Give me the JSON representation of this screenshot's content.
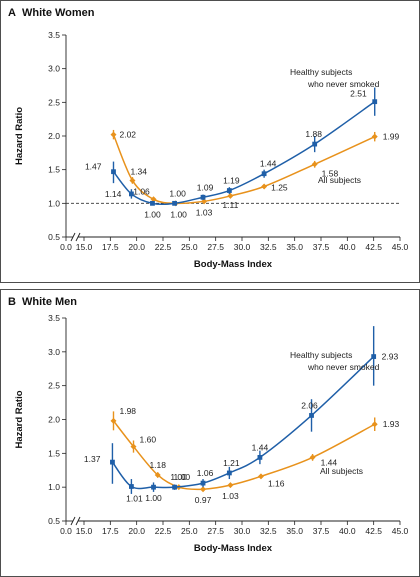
{
  "chart_data": [
    {
      "type": "line",
      "panel_letter": "A",
      "title": "White Women",
      "xlabel": "Body-Mass Index",
      "ylabel": "Hazard Ratio",
      "xlim": [
        0,
        45
      ],
      "ylim": [
        0.5,
        3.5
      ],
      "x_ticks": [
        0.0,
        15.0,
        17.5,
        20.0,
        22.5,
        25.0,
        27.5,
        30.0,
        32.5,
        35.0,
        37.5,
        40.0,
        42.5,
        45.0
      ],
      "x_tick_labels": [
        "0.0",
        "15.0",
        "17.5",
        "20.0",
        "22.5",
        "25.0",
        "27.5",
        "30.0",
        "32.5",
        "35.0",
        "37.5",
        "40.0",
        "42.5",
        "45.0"
      ],
      "y_ticks": [
        0.5,
        1.0,
        1.5,
        2.0,
        2.5,
        3.0,
        3.5
      ],
      "y_tick_labels": [
        "0.5",
        "1.0",
        "1.5",
        "2.0",
        "2.5",
        "3.0",
        "3.5"
      ],
      "reference_line": 1.0,
      "series": [
        {
          "name": "Healthy subjects who never smoked",
          "color": "#1f5fa8",
          "x": [
            17.8,
            19.5,
            21.5,
            23.6,
            26.3,
            28.8,
            32.1,
            36.9,
            42.6
          ],
          "y": [
            1.47,
            1.14,
            1.0,
            1.0,
            1.09,
            1.19,
            1.44,
            1.88,
            2.51
          ],
          "ci_low": [
            1.3,
            1.07,
            0.97,
            0.98,
            1.05,
            1.14,
            1.38,
            1.76,
            2.3
          ],
          "ci_high": [
            1.62,
            1.21,
            1.03,
            1.02,
            1.13,
            1.24,
            1.5,
            2.0,
            2.72
          ],
          "labels": [
            "1.47",
            "1.14",
            "1.00",
            "1.00",
            "1.09",
            "1.19",
            "1.44",
            "1.88",
            "2.51"
          ]
        },
        {
          "name": "All subjects",
          "color": "#e8921c",
          "x": [
            17.8,
            19.6,
            21.6,
            23.7,
            26.4,
            28.9,
            32.1,
            36.9,
            42.6
          ],
          "y": [
            2.02,
            1.34,
            1.06,
            1.0,
            1.03,
            1.11,
            1.25,
            1.58,
            1.99
          ],
          "ci_low": [
            1.95,
            1.29,
            1.04,
            0.99,
            1.02,
            1.09,
            1.23,
            1.53,
            1.92
          ],
          "ci_high": [
            2.09,
            1.39,
            1.08,
            1.01,
            1.04,
            1.13,
            1.27,
            1.63,
            2.06
          ],
          "labels": [
            "2.02",
            "1.34",
            "1.06",
            "1.00",
            "1.03",
            "1.11",
            "1.25",
            "1.58",
            "1.99"
          ]
        }
      ]
    },
    {
      "type": "line",
      "panel_letter": "B",
      "title": "White Men",
      "xlabel": "Body-Mass Index",
      "ylabel": "Hazard Ratio",
      "xlim": [
        0,
        45
      ],
      "ylim": [
        0.5,
        3.5
      ],
      "x_ticks": [
        0.0,
        15.0,
        17.5,
        20.0,
        22.5,
        25.0,
        27.5,
        30.0,
        32.5,
        35.0,
        37.5,
        40.0,
        42.5,
        45.0
      ],
      "x_tick_labels": [
        "0.0",
        "15.0",
        "17.5",
        "20.0",
        "22.5",
        "25.0",
        "27.5",
        "30.0",
        "32.5",
        "35.0",
        "37.5",
        "40.0",
        "42.5",
        "45.0"
      ],
      "y_ticks": [
        0.5,
        1.0,
        1.5,
        2.0,
        2.5,
        3.0,
        3.5
      ],
      "y_tick_labels": [
        "0.5",
        "1.0",
        "1.5",
        "2.0",
        "2.5",
        "3.0",
        "3.5"
      ],
      "reference_line": null,
      "series": [
        {
          "name": "Healthy subjects who never smoked",
          "color": "#1f5fa8",
          "x": [
            17.7,
            19.5,
            21.6,
            23.6,
            26.3,
            28.8,
            31.7,
            36.6,
            42.5
          ],
          "y": [
            1.37,
            1.01,
            1.0,
            1.0,
            1.06,
            1.21,
            1.44,
            2.06,
            2.93
          ],
          "ci_low": [
            1.05,
            0.9,
            0.93,
            0.96,
            1.0,
            1.12,
            1.34,
            1.82,
            2.5
          ],
          "ci_high": [
            1.65,
            1.12,
            1.07,
            1.04,
            1.12,
            1.3,
            1.54,
            2.3,
            3.38
          ],
          "labels": [
            "1.37",
            "1.01",
            "1.00",
            "1.00",
            "1.06",
            "1.21",
            "1.44",
            "2.06",
            "2.93"
          ]
        },
        {
          "name": "All subjects",
          "color": "#e8921c",
          "x": [
            17.8,
            19.7,
            22.0,
            24.0,
            26.3,
            28.9,
            31.8,
            36.7,
            42.6
          ],
          "y": [
            1.98,
            1.6,
            1.18,
            1.0,
            0.97,
            1.03,
            1.16,
            1.44,
            1.93
          ],
          "ci_low": [
            1.84,
            1.51,
            1.14,
            0.98,
            0.96,
            1.01,
            1.13,
            1.39,
            1.83
          ],
          "ci_high": [
            2.12,
            1.69,
            1.22,
            1.02,
            0.98,
            1.05,
            1.19,
            1.49,
            2.03
          ],
          "labels": [
            "1.98",
            "1.60",
            "1.18",
            "1.00",
            "0.97",
            "1.03",
            "1.16",
            "1.44",
            "1.93"
          ]
        }
      ]
    }
  ]
}
